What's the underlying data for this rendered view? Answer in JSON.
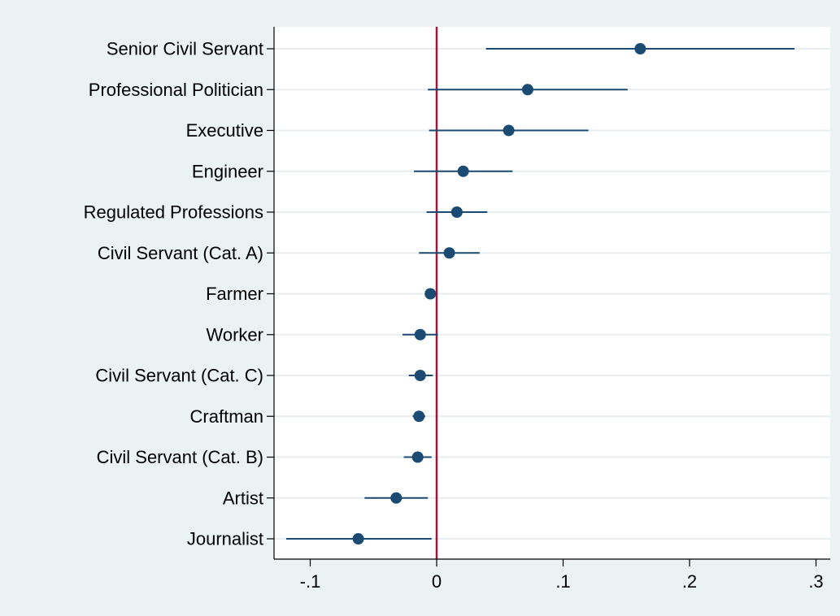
{
  "chart_data": {
    "type": "scatter",
    "subtype": "coefficient-plot",
    "title": "",
    "xlabel": "",
    "ylabel": "",
    "xlim": [
      -0.13,
      0.31
    ],
    "xticks": [
      {
        "value": -0.1,
        "label": "-.1"
      },
      {
        "value": 0,
        "label": "0"
      },
      {
        "value": 0.1,
        "label": ".1"
      },
      {
        "value": 0.2,
        "label": ".2"
      },
      {
        "value": 0.3,
        "label": ".3"
      }
    ],
    "reference_line": {
      "x": 0,
      "color": "#a0143c"
    },
    "grid": "horizontal",
    "colors": {
      "outer_background": "#eaf2f3",
      "plot_background": "#ffffff",
      "gridline": "#e6eef0",
      "marker": "#1b4a72",
      "ci_line": "#1b4a72",
      "axis": "#000000"
    },
    "categories": [
      "Senior Civil Servant",
      "Professional Politician",
      "Executive",
      "Engineer",
      "Regulated Professions",
      "Civil Servant (Cat. A)",
      "Farmer",
      "Worker",
      "Civil Servant (Cat. C)",
      "Craftman",
      "Civil Servant (Cat. B)",
      "Artist",
      "Journalist"
    ],
    "estimates": [
      0.161,
      0.072,
      0.057,
      0.021,
      0.016,
      0.01,
      -0.005,
      -0.013,
      -0.013,
      -0.014,
      -0.015,
      -0.032,
      -0.062
    ],
    "ci_low": [
      0.039,
      -0.007,
      -0.006,
      -0.018,
      -0.008,
      -0.014,
      -0.005,
      -0.027,
      -0.022,
      -0.019,
      -0.026,
      -0.057,
      -0.119
    ],
    "ci_high": [
      0.283,
      0.151,
      0.12,
      0.06,
      0.04,
      0.034,
      -0.005,
      0.001,
      -0.003,
      -0.009,
      -0.004,
      -0.007,
      -0.004
    ]
  }
}
